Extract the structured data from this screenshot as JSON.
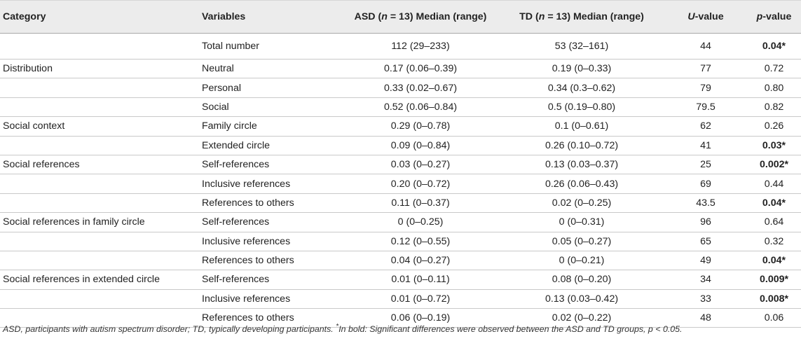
{
  "headers": {
    "category": "Category",
    "variables": "Variables",
    "asd_prefix": "ASD (",
    "asd_n": "n",
    "asd_suffix": " = 13) Median (range)",
    "td_prefix": "TD (",
    "td_n": "n",
    "td_suffix": " = 13) Median (range)",
    "u": "U",
    "u_suffix": "-value",
    "p": "p",
    "p_suffix": "-value"
  },
  "rows": [
    {
      "category": "",
      "variable": "Total number",
      "asd": "112 (29–233)",
      "td": "53 (32–161)",
      "u": "44",
      "p": "0.04*",
      "sig": true
    },
    {
      "category": "Distribution",
      "variable": "Neutral",
      "asd": "0.17 (0.06–0.39)",
      "td": "0.19 (0–0.33)",
      "u": "77",
      "p": "0.72",
      "sig": false
    },
    {
      "category": "",
      "variable": "Personal",
      "asd": "0.33 (0.02–0.67)",
      "td": "0.34 (0.3–0.62)",
      "u": "79",
      "p": "0.80",
      "sig": false
    },
    {
      "category": "",
      "variable": "Social",
      "asd": "0.52 (0.06–0.84)",
      "td": "0.5 (0.19–0.80)",
      "u": "79.5",
      "p": "0.82",
      "sig": false
    },
    {
      "category": "Social context",
      "variable": "Family circle",
      "asd": "0.29 (0–0.78)",
      "td": "0.1 (0–0.61)",
      "u": "62",
      "p": "0.26",
      "sig": false
    },
    {
      "category": "",
      "variable": "Extended circle",
      "asd": "0.09 (0–0.84)",
      "td": "0.26 (0.10–0.72)",
      "u": "41",
      "p": "0.03*",
      "sig": true
    },
    {
      "category": "Social references",
      "variable": "Self-references",
      "asd": "0.03 (0–0.27)",
      "td": "0.13 (0.03–0.37)",
      "u": "25",
      "p": "0.002*",
      "sig": true
    },
    {
      "category": "",
      "variable": "Inclusive references",
      "asd": "0.20 (0–0.72)",
      "td": "0.26 (0.06–0.43)",
      "u": "69",
      "p": "0.44",
      "sig": false
    },
    {
      "category": "",
      "variable": "References to others",
      "asd": "0.11 (0–0.37)",
      "td": "0.02 (0–0.25)",
      "u": "43.5",
      "p": "0.04*",
      "sig": true
    },
    {
      "category": "Social references in family circle",
      "variable": "Self-references",
      "asd": "0 (0–0.25)",
      "td": "0 (0–0.31)",
      "u": "96",
      "p": "0.64",
      "sig": false
    },
    {
      "category": "",
      "variable": "Inclusive references",
      "asd": "0.12 (0–0.55)",
      "td": "0.05 (0–0.27)",
      "u": "65",
      "p": "0.32",
      "sig": false
    },
    {
      "category": "",
      "variable": "References to others",
      "asd": "0.04 (0–0.27)",
      "td": "0 (0–0.21)",
      "u": "49",
      "p": "0.04*",
      "sig": true
    },
    {
      "category": "Social references in extended circle",
      "variable": "Self-references",
      "asd": "0.01 (0–0.11)",
      "td": "0.08 (0–0.20)",
      "u": "34",
      "p": "0.009*",
      "sig": true
    },
    {
      "category": "",
      "variable": "Inclusive references",
      "asd": "0.01 (0–0.72)",
      "td": "0.13 (0.03–0.42)",
      "u": "33",
      "p": "0.008*",
      "sig": true
    },
    {
      "category": "",
      "variable": "References to others",
      "asd": "0.06 (0–0.19)",
      "td": "0.02 (0–0.22)",
      "u": "48",
      "p": "0.06",
      "sig": false
    }
  ],
  "footnote": {
    "text": "ASD, participants with autism spectrum disorder; TD, typically developing participants. ",
    "star": "*",
    "note": "In bold: Significant differences were observed between the ASD and TD groups, p < 0.05."
  }
}
